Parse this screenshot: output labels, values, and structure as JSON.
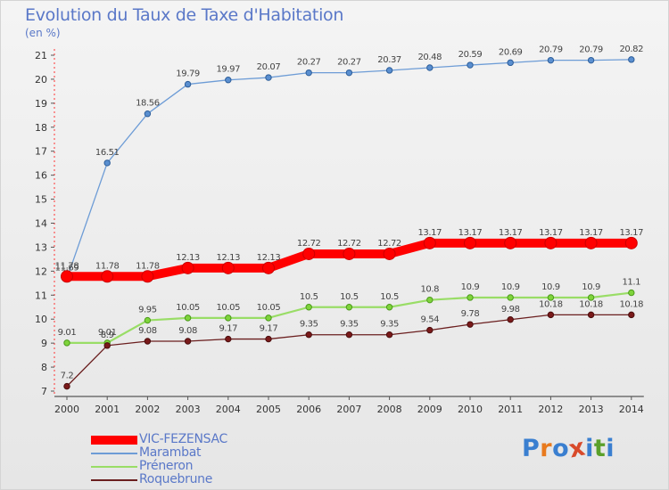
{
  "header": {
    "title": "Evolution du Taux de Taxe d'Habitation",
    "unit": "(en %)"
  },
  "colors": {
    "title": "#5a78c8",
    "VIC-FEZENSAC": "#ff0000",
    "Marambat": "#6d9cd6",
    "Préneron": "#99dd66",
    "Roquebrune": "#6b1f1f"
  },
  "logo": {
    "text": "Proxiti",
    "colors": [
      "#3a7fd0",
      "#e87a1e",
      "#3a7fd0",
      "#d84a2a",
      "#3a7fd0",
      "#5aa02a",
      "#3a7fd0"
    ]
  },
  "chart_data": {
    "type": "line",
    "title": "Evolution du Taux de Taxe d'Habitation",
    "ylabel": "(en %)",
    "xlabel": "",
    "ylim": [
      7,
      21
    ],
    "yticks": [
      7,
      8,
      9,
      10,
      11,
      12,
      13,
      14,
      15,
      16,
      17,
      18,
      19,
      20,
      21
    ],
    "grid": false,
    "legend_position": "bottom-left",
    "categories": [
      "2000",
      "2001",
      "2002",
      "2003",
      "2004",
      "2005",
      "2006",
      "2007",
      "2008",
      "2009",
      "2010",
      "2011",
      "2012",
      "2013",
      "2014"
    ],
    "series": [
      {
        "name": "Marambat",
        "values": [
          11.69,
          16.51,
          18.56,
          19.79,
          19.97,
          20.07,
          20.27,
          20.27,
          20.37,
          20.48,
          20.59,
          20.69,
          20.79,
          20.79,
          20.82
        ]
      },
      {
        "name": "Préneron",
        "values": [
          9.01,
          9.01,
          9.95,
          10.05,
          10.05,
          10.05,
          10.5,
          10.5,
          10.5,
          10.8,
          10.9,
          10.9,
          10.9,
          10.9,
          11.1
        ]
      },
      {
        "name": "Roquebrune",
        "values": [
          7.2,
          8.9,
          9.08,
          9.08,
          9.17,
          9.17,
          9.35,
          9.35,
          9.35,
          9.54,
          9.78,
          9.98,
          10.18,
          10.18,
          10.18
        ]
      },
      {
        "name": "VIC-FEZENSAC",
        "values": [
          11.78,
          11.78,
          11.78,
          12.13,
          12.13,
          12.13,
          12.72,
          12.72,
          12.72,
          13.17,
          13.17,
          13.17,
          13.17,
          13.17,
          13.17
        ]
      }
    ],
    "value_labels": {
      "Marambat": [
        "11.69",
        "16.51",
        "18.56",
        "19.79",
        "19.97",
        "20.07",
        "20.27",
        "20.27",
        "20.37",
        "20.48",
        "20.59",
        "20.69",
        "20.79",
        "20.79",
        "20.82"
      ],
      "Préneron": [
        "9.01",
        "9.01",
        "9.95",
        "10.05",
        "10.05",
        "10.05",
        "10.5",
        "10.5",
        "10.5",
        "10.8",
        "10.9",
        "10.9",
        "10.9",
        "10.9",
        "11.1"
      ],
      "Roquebrune": [
        "7.2",
        "8.9",
        "9.08",
        "9.08",
        "9.17",
        "9.17",
        "9.35",
        "9.35",
        "9.35",
        "9.54",
        "9.78",
        "9.98",
        "10.18",
        "10.18",
        "10.18"
      ],
      "VIC-FEZENSAC": [
        "11.78",
        "11.78",
        "11.78",
        "12.13",
        "12.13",
        "12.13",
        "12.72",
        "12.72",
        "12.72",
        "13.17",
        "13.17",
        "13.17",
        "13.17",
        "13.17",
        "13.17"
      ]
    },
    "legend": [
      "VIC-FEZENSAC",
      "Marambat",
      "Préneron",
      "Roquebrune"
    ]
  }
}
